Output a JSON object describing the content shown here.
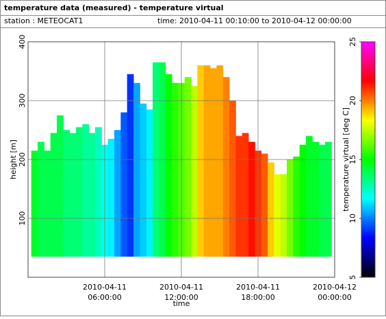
{
  "chart_data": {
    "type": "heatmap",
    "title": "temperature data (measured) - temperature virtual",
    "station": "station : METEOCAT1",
    "time_range": "time: 2010-04-11 00:10:00 to 2010-04-12 00:00:00",
    "xlabel": "time",
    "ylabel": "height [m]",
    "colorbar_label": "temperature virtual [deg C]",
    "xlim": [
      "2010-04-11 00:00:00",
      "2010-04-12 00:00:00"
    ],
    "xticks": [
      "2010-04-11 06:00:00",
      "2010-04-11 12:00:00",
      "2010-04-11 18:00:00",
      "2010-04-12 00:00:00"
    ],
    "ylim": [
      0,
      400
    ],
    "yticks": [
      100,
      200,
      300,
      400
    ],
    "clim": [
      5,
      25
    ],
    "cticks": [
      5,
      10,
      15,
      20,
      25
    ],
    "colormap": [
      "#000000",
      "#0000ff",
      "#00ffff",
      "#00ff00",
      "#ffff00",
      "#ff0000",
      "#ff00ff"
    ],
    "bottom": 35,
    "x": [
      "2010-04-11 00:30:00",
      "2010-04-11 01:00:00",
      "2010-04-11 01:30:00",
      "2010-04-11 02:00:00",
      "2010-04-11 02:30:00",
      "2010-04-11 03:00:00",
      "2010-04-11 03:30:00",
      "2010-04-11 04:00:00",
      "2010-04-11 04:30:00",
      "2010-04-11 05:00:00",
      "2010-04-11 05:30:00",
      "2010-04-11 06:00:00",
      "2010-04-11 06:30:00",
      "2010-04-11 07:00:00",
      "2010-04-11 07:30:00",
      "2010-04-11 08:00:00",
      "2010-04-11 08:30:00",
      "2010-04-11 09:00:00",
      "2010-04-11 09:30:00",
      "2010-04-11 10:00:00",
      "2010-04-11 10:30:00",
      "2010-04-11 11:00:00",
      "2010-04-11 11:30:00",
      "2010-04-11 12:00:00",
      "2010-04-11 12:30:00",
      "2010-04-11 13:00:00",
      "2010-04-11 13:30:00",
      "2010-04-11 14:00:00",
      "2010-04-11 14:30:00",
      "2010-04-11 15:00:00",
      "2010-04-11 15:30:00",
      "2010-04-11 16:00:00",
      "2010-04-11 16:30:00",
      "2010-04-11 17:00:00",
      "2010-04-11 17:30:00",
      "2010-04-11 18:00:00",
      "2010-04-11 18:30:00",
      "2010-04-11 19:00:00",
      "2010-04-11 19:30:00",
      "2010-04-11 20:00:00",
      "2010-04-11 20:30:00",
      "2010-04-11 21:00:00",
      "2010-04-11 21:30:00",
      "2010-04-11 22:00:00",
      "2010-04-11 22:30:00",
      "2010-04-11 23:00:00",
      "2010-04-11 23:30:00"
    ],
    "top": [
      215,
      230,
      215,
      245,
      275,
      250,
      245,
      255,
      260,
      245,
      255,
      225,
      235,
      250,
      280,
      345,
      330,
      295,
      285,
      365,
      365,
      345,
      330,
      330,
      340,
      325,
      360,
      360,
      355,
      360,
      340,
      300,
      240,
      245,
      230,
      215,
      210,
      195,
      175,
      175,
      200,
      205,
      225,
      240,
      230,
      225,
      230
    ],
    "values": [
      14.5,
      14,
      14,
      14,
      14,
      13.5,
      13.5,
      13.5,
      13,
      13,
      12.5,
      12,
      11.5,
      10.5,
      9.5,
      9,
      10.5,
      11,
      11.5,
      13.5,
      14,
      15,
      15.5,
      16,
      16.5,
      17.5,
      19,
      19.5,
      19.5,
      19.5,
      20,
      20.5,
      21,
      21,
      21.5,
      21,
      20.5,
      19,
      18,
      17.5,
      16.5,
      15.5,
      15,
      14.5,
      14.5,
      14,
      14
    ]
  }
}
